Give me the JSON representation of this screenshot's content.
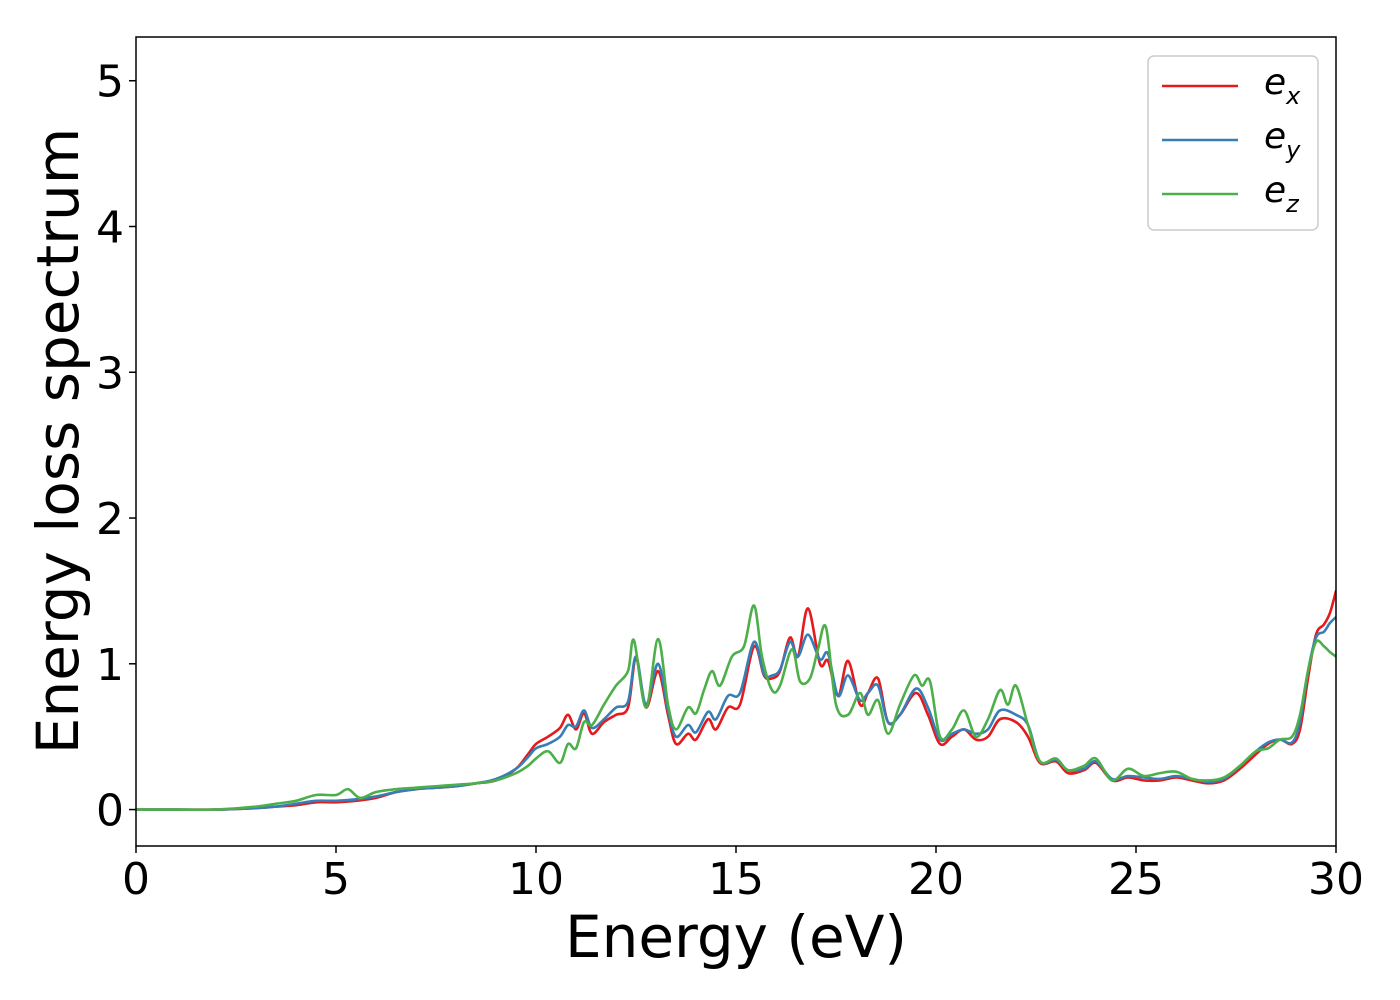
{
  "chart_data": {
    "type": "line",
    "xlabel": "Energy (eV)",
    "ylabel": "Energy loss spectrum",
    "xlim": [
      0,
      30
    ],
    "ylim": [
      -0.25,
      5.3
    ],
    "xticks": [
      0,
      5,
      10,
      15,
      20,
      25,
      30
    ],
    "yticks": [
      0,
      1,
      2,
      3,
      4,
      5
    ],
    "grid": false,
    "legend_position": "top-right",
    "series": [
      {
        "name": "e_x",
        "label_base": "e",
        "label_sub": "x",
        "color": "#e41a1c",
        "points": [
          [
            0,
            0.0
          ],
          [
            1,
            0.0
          ],
          [
            2,
            0.0
          ],
          [
            3,
            0.01
          ],
          [
            3.5,
            0.02
          ],
          [
            4,
            0.03
          ],
          [
            4.5,
            0.05
          ],
          [
            5,
            0.05
          ],
          [
            5.5,
            0.06
          ],
          [
            6,
            0.08
          ],
          [
            6.5,
            0.12
          ],
          [
            7,
            0.14
          ],
          [
            7.5,
            0.15
          ],
          [
            8,
            0.16
          ],
          [
            8.5,
            0.18
          ],
          [
            9,
            0.2
          ],
          [
            9.5,
            0.28
          ],
          [
            9.8,
            0.38
          ],
          [
            10,
            0.45
          ],
          [
            10.3,
            0.5
          ],
          [
            10.6,
            0.56
          ],
          [
            10.8,
            0.65
          ],
          [
            11,
            0.55
          ],
          [
            11.2,
            0.66
          ],
          [
            11.4,
            0.52
          ],
          [
            11.7,
            0.6
          ],
          [
            12,
            0.65
          ],
          [
            12.3,
            0.7
          ],
          [
            12.5,
            1.03
          ],
          [
            12.75,
            0.7
          ],
          [
            13.05,
            0.95
          ],
          [
            13.3,
            0.65
          ],
          [
            13.5,
            0.45
          ],
          [
            13.8,
            0.52
          ],
          [
            14,
            0.48
          ],
          [
            14.3,
            0.62
          ],
          [
            14.5,
            0.55
          ],
          [
            14.8,
            0.7
          ],
          [
            15.1,
            0.72
          ],
          [
            15.45,
            1.12
          ],
          [
            15.7,
            0.92
          ],
          [
            15.9,
            0.9
          ],
          [
            16.1,
            0.95
          ],
          [
            16.35,
            1.18
          ],
          [
            16.55,
            1.05
          ],
          [
            16.8,
            1.38
          ],
          [
            17.1,
            1.0
          ],
          [
            17.3,
            1.02
          ],
          [
            17.55,
            0.78
          ],
          [
            17.8,
            1.02
          ],
          [
            18.1,
            0.72
          ],
          [
            18.3,
            0.8
          ],
          [
            18.55,
            0.9
          ],
          [
            18.8,
            0.6
          ],
          [
            19.1,
            0.65
          ],
          [
            19.5,
            0.8
          ],
          [
            19.8,
            0.65
          ],
          [
            20.1,
            0.45
          ],
          [
            20.4,
            0.5
          ],
          [
            20.7,
            0.55
          ],
          [
            21,
            0.48
          ],
          [
            21.3,
            0.5
          ],
          [
            21.6,
            0.62
          ],
          [
            22,
            0.6
          ],
          [
            22.3,
            0.5
          ],
          [
            22.6,
            0.32
          ],
          [
            23,
            0.33
          ],
          [
            23.3,
            0.25
          ],
          [
            23.7,
            0.27
          ],
          [
            24,
            0.32
          ],
          [
            24.4,
            0.2
          ],
          [
            24.8,
            0.22
          ],
          [
            25.2,
            0.2
          ],
          [
            25.6,
            0.2
          ],
          [
            26,
            0.22
          ],
          [
            26.4,
            0.2
          ],
          [
            26.8,
            0.18
          ],
          [
            27.2,
            0.2
          ],
          [
            27.6,
            0.28
          ],
          [
            28,
            0.38
          ],
          [
            28.3,
            0.45
          ],
          [
            28.6,
            0.48
          ],
          [
            28.9,
            0.45
          ],
          [
            29.1,
            0.55
          ],
          [
            29.3,
            0.9
          ],
          [
            29.5,
            1.2
          ],
          [
            29.7,
            1.27
          ],
          [
            29.85,
            1.35
          ],
          [
            30,
            1.5
          ]
        ]
      },
      {
        "name": "e_y",
        "label_base": "e",
        "label_sub": "y",
        "color": "#377eb8",
        "points": [
          [
            0,
            0.0
          ],
          [
            1,
            0.0
          ],
          [
            2,
            0.0
          ],
          [
            3,
            0.01
          ],
          [
            3.5,
            0.02
          ],
          [
            4,
            0.04
          ],
          [
            4.5,
            0.06
          ],
          [
            5,
            0.06
          ],
          [
            5.5,
            0.07
          ],
          [
            6,
            0.09
          ],
          [
            6.5,
            0.12
          ],
          [
            7,
            0.14
          ],
          [
            7.5,
            0.15
          ],
          [
            8,
            0.16
          ],
          [
            8.5,
            0.18
          ],
          [
            9,
            0.21
          ],
          [
            9.5,
            0.28
          ],
          [
            9.8,
            0.36
          ],
          [
            10,
            0.42
          ],
          [
            10.3,
            0.45
          ],
          [
            10.6,
            0.5
          ],
          [
            10.8,
            0.58
          ],
          [
            11,
            0.57
          ],
          [
            11.2,
            0.68
          ],
          [
            11.4,
            0.56
          ],
          [
            11.7,
            0.62
          ],
          [
            12,
            0.7
          ],
          [
            12.3,
            0.74
          ],
          [
            12.5,
            1.05
          ],
          [
            12.75,
            0.72
          ],
          [
            13.05,
            1.0
          ],
          [
            13.3,
            0.68
          ],
          [
            13.5,
            0.5
          ],
          [
            13.8,
            0.58
          ],
          [
            14,
            0.53
          ],
          [
            14.3,
            0.67
          ],
          [
            14.5,
            0.62
          ],
          [
            14.8,
            0.78
          ],
          [
            15.1,
            0.8
          ],
          [
            15.45,
            1.15
          ],
          [
            15.7,
            0.93
          ],
          [
            15.9,
            0.92
          ],
          [
            16.1,
            0.96
          ],
          [
            16.35,
            1.15
          ],
          [
            16.55,
            1.05
          ],
          [
            16.8,
            1.2
          ],
          [
            17.1,
            1.03
          ],
          [
            17.3,
            1.07
          ],
          [
            17.55,
            0.78
          ],
          [
            17.8,
            0.92
          ],
          [
            18.1,
            0.75
          ],
          [
            18.3,
            0.8
          ],
          [
            18.55,
            0.85
          ],
          [
            18.8,
            0.6
          ],
          [
            19.1,
            0.65
          ],
          [
            19.5,
            0.83
          ],
          [
            19.8,
            0.7
          ],
          [
            20.1,
            0.48
          ],
          [
            20.4,
            0.52
          ],
          [
            20.7,
            0.55
          ],
          [
            21,
            0.52
          ],
          [
            21.3,
            0.55
          ],
          [
            21.6,
            0.68
          ],
          [
            22,
            0.65
          ],
          [
            22.3,
            0.58
          ],
          [
            22.6,
            0.33
          ],
          [
            23,
            0.34
          ],
          [
            23.3,
            0.27
          ],
          [
            23.7,
            0.28
          ],
          [
            24,
            0.33
          ],
          [
            24.4,
            0.21
          ],
          [
            24.8,
            0.23
          ],
          [
            25.2,
            0.22
          ],
          [
            25.6,
            0.21
          ],
          [
            26,
            0.23
          ],
          [
            26.4,
            0.21
          ],
          [
            26.8,
            0.19
          ],
          [
            27.2,
            0.21
          ],
          [
            27.6,
            0.3
          ],
          [
            28,
            0.4
          ],
          [
            28.3,
            0.46
          ],
          [
            28.6,
            0.48
          ],
          [
            28.9,
            0.46
          ],
          [
            29.1,
            0.6
          ],
          [
            29.3,
            0.95
          ],
          [
            29.5,
            1.18
          ],
          [
            29.7,
            1.22
          ],
          [
            29.85,
            1.28
          ],
          [
            30,
            1.32
          ]
        ]
      },
      {
        "name": "e_z",
        "label_base": "e",
        "label_sub": "z",
        "color": "#4daf4a",
        "points": [
          [
            0,
            0.0
          ],
          [
            1,
            0.0
          ],
          [
            2,
            0.0
          ],
          [
            3,
            0.02
          ],
          [
            3.5,
            0.04
          ],
          [
            4,
            0.06
          ],
          [
            4.5,
            0.1
          ],
          [
            5,
            0.1
          ],
          [
            5.3,
            0.14
          ],
          [
            5.6,
            0.08
          ],
          [
            6,
            0.12
          ],
          [
            6.5,
            0.14
          ],
          [
            7,
            0.15
          ],
          [
            7.5,
            0.16
          ],
          [
            8,
            0.17
          ],
          [
            8.5,
            0.18
          ],
          [
            9,
            0.2
          ],
          [
            9.5,
            0.25
          ],
          [
            9.8,
            0.3
          ],
          [
            10,
            0.35
          ],
          [
            10.3,
            0.4
          ],
          [
            10.6,
            0.32
          ],
          [
            10.8,
            0.45
          ],
          [
            11,
            0.42
          ],
          [
            11.2,
            0.6
          ],
          [
            11.4,
            0.58
          ],
          [
            11.7,
            0.72
          ],
          [
            12,
            0.85
          ],
          [
            12.3,
            0.95
          ],
          [
            12.45,
            1.16
          ],
          [
            12.75,
            0.7
          ],
          [
            13.05,
            1.17
          ],
          [
            13.3,
            0.72
          ],
          [
            13.5,
            0.55
          ],
          [
            13.8,
            0.7
          ],
          [
            14,
            0.66
          ],
          [
            14.2,
            0.82
          ],
          [
            14.4,
            0.95
          ],
          [
            14.6,
            0.85
          ],
          [
            14.9,
            1.05
          ],
          [
            15.2,
            1.12
          ],
          [
            15.45,
            1.4
          ],
          [
            15.65,
            1.05
          ],
          [
            15.9,
            0.82
          ],
          [
            16.1,
            0.85
          ],
          [
            16.4,
            1.1
          ],
          [
            16.6,
            0.88
          ],
          [
            16.85,
            0.9
          ],
          [
            17.05,
            1.1
          ],
          [
            17.25,
            1.25
          ],
          [
            17.5,
            0.72
          ],
          [
            17.8,
            0.65
          ],
          [
            18.1,
            0.8
          ],
          [
            18.3,
            0.65
          ],
          [
            18.55,
            0.75
          ],
          [
            18.8,
            0.52
          ],
          [
            19.1,
            0.72
          ],
          [
            19.45,
            0.92
          ],
          [
            19.65,
            0.85
          ],
          [
            19.85,
            0.88
          ],
          [
            20.1,
            0.5
          ],
          [
            20.4,
            0.55
          ],
          [
            20.7,
            0.68
          ],
          [
            21,
            0.5
          ],
          [
            21.3,
            0.62
          ],
          [
            21.6,
            0.82
          ],
          [
            21.8,
            0.72
          ],
          [
            22,
            0.85
          ],
          [
            22.3,
            0.58
          ],
          [
            22.6,
            0.33
          ],
          [
            23,
            0.35
          ],
          [
            23.3,
            0.27
          ],
          [
            23.7,
            0.3
          ],
          [
            24,
            0.35
          ],
          [
            24.4,
            0.2
          ],
          [
            24.8,
            0.28
          ],
          [
            25.2,
            0.23
          ],
          [
            25.6,
            0.25
          ],
          [
            26,
            0.26
          ],
          [
            26.4,
            0.21
          ],
          [
            26.8,
            0.2
          ],
          [
            27.2,
            0.22
          ],
          [
            27.6,
            0.3
          ],
          [
            28,
            0.4
          ],
          [
            28.3,
            0.42
          ],
          [
            28.6,
            0.48
          ],
          [
            28.9,
            0.5
          ],
          [
            29.1,
            0.65
          ],
          [
            29.3,
            0.95
          ],
          [
            29.5,
            1.15
          ],
          [
            29.7,
            1.12
          ],
          [
            29.85,
            1.08
          ],
          [
            30,
            1.05
          ]
        ]
      }
    ]
  }
}
